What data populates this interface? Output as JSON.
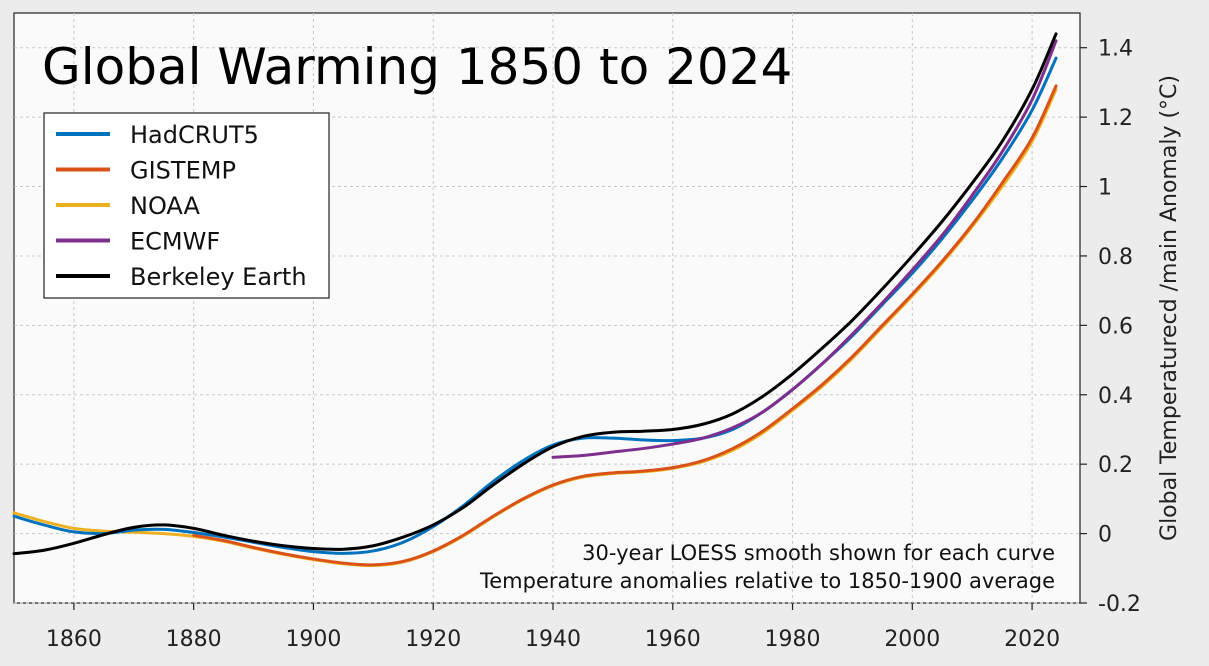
{
  "chart_data": {
    "type": "line",
    "title": "Global Warming 1850 to 2024",
    "ylabel": "Global Temperaturecd /main Anomaly (°C)",
    "xlabel": "",
    "xlim": [
      1850,
      2028
    ],
    "ylim": [
      -0.2,
      1.5
    ],
    "xticks": [
      1860,
      1880,
      1900,
      1920,
      1940,
      1960,
      1980,
      2000,
      2020
    ],
    "yticks": [
      -0.2,
      0,
      0.2,
      0.4,
      0.6,
      0.8,
      1,
      1.2,
      1.4
    ],
    "ytick_labels": [
      "-0.2",
      "0",
      "0.2",
      "0.4",
      "0.6",
      "0.8",
      "1",
      "1.2",
      "1.4"
    ],
    "y_axis_side": "right",
    "grid": true,
    "legend_position": "top-left",
    "annotations": [
      "30-year LOESS smooth shown for each curve",
      "Temperature anomalies relative to 1850-1900 average"
    ],
    "series": [
      {
        "name": "HadCRUT5",
        "color": "#0072bd",
        "points": [
          [
            1850,
            0.05
          ],
          [
            1855,
            0.025
          ],
          [
            1860,
            0.005
          ],
          [
            1865,
            0.0
          ],
          [
            1870,
            0.01
          ],
          [
            1875,
            0.012
          ],
          [
            1880,
            0.003
          ],
          [
            1885,
            -0.01
          ],
          [
            1890,
            -0.025
          ],
          [
            1895,
            -0.04
          ],
          [
            1900,
            -0.052
          ],
          [
            1905,
            -0.057
          ],
          [
            1910,
            -0.05
          ],
          [
            1915,
            -0.025
          ],
          [
            1920,
            0.02
          ],
          [
            1925,
            0.08
          ],
          [
            1930,
            0.15
          ],
          [
            1935,
            0.21
          ],
          [
            1940,
            0.255
          ],
          [
            1945,
            0.275
          ],
          [
            1950,
            0.275
          ],
          [
            1955,
            0.27
          ],
          [
            1960,
            0.268
          ],
          [
            1965,
            0.275
          ],
          [
            1970,
            0.3
          ],
          [
            1975,
            0.35
          ],
          [
            1980,
            0.415
          ],
          [
            1985,
            0.49
          ],
          [
            1990,
            0.57
          ],
          [
            1995,
            0.66
          ],
          [
            2000,
            0.75
          ],
          [
            2005,
            0.85
          ],
          [
            2010,
            0.96
          ],
          [
            2015,
            1.08
          ],
          [
            2020,
            1.22
          ],
          [
            2024,
            1.37
          ]
        ]
      },
      {
        "name": "GISTEMP",
        "color": "#d95319",
        "points": [
          [
            1880,
            -0.005
          ],
          [
            1885,
            -0.02
          ],
          [
            1890,
            -0.04
          ],
          [
            1895,
            -0.058
          ],
          [
            1900,
            -0.073
          ],
          [
            1905,
            -0.085
          ],
          [
            1910,
            -0.09
          ],
          [
            1915,
            -0.08
          ],
          [
            1920,
            -0.05
          ],
          [
            1925,
            -0.005
          ],
          [
            1930,
            0.05
          ],
          [
            1935,
            0.1
          ],
          [
            1940,
            0.14
          ],
          [
            1945,
            0.165
          ],
          [
            1950,
            0.175
          ],
          [
            1955,
            0.18
          ],
          [
            1960,
            0.19
          ],
          [
            1965,
            0.21
          ],
          [
            1970,
            0.245
          ],
          [
            1975,
            0.295
          ],
          [
            1980,
            0.36
          ],
          [
            1985,
            0.43
          ],
          [
            1990,
            0.51
          ],
          [
            1995,
            0.6
          ],
          [
            2000,
            0.69
          ],
          [
            2005,
            0.785
          ],
          [
            2010,
            0.89
          ],
          [
            2015,
            1.01
          ],
          [
            2020,
            1.14
          ],
          [
            2024,
            1.29
          ]
        ]
      },
      {
        "name": "NOAA",
        "color": "#edb120",
        "points": [
          [
            1850,
            0.06
          ],
          [
            1855,
            0.035
          ],
          [
            1860,
            0.015
          ],
          [
            1865,
            0.007
          ],
          [
            1870,
            0.004
          ],
          [
            1875,
            0.0
          ],
          [
            1880,
            -0.008
          ],
          [
            1885,
            -0.022
          ],
          [
            1890,
            -0.042
          ],
          [
            1895,
            -0.06
          ],
          [
            1900,
            -0.075
          ],
          [
            1905,
            -0.087
          ],
          [
            1910,
            -0.092
          ],
          [
            1915,
            -0.082
          ],
          [
            1920,
            -0.052
          ],
          [
            1925,
            -0.007
          ],
          [
            1930,
            0.048
          ],
          [
            1935,
            0.098
          ],
          [
            1940,
            0.138
          ],
          [
            1945,
            0.163
          ],
          [
            1950,
            0.173
          ],
          [
            1955,
            0.178
          ],
          [
            1960,
            0.188
          ],
          [
            1965,
            0.207
          ],
          [
            1970,
            0.24
          ],
          [
            1975,
            0.29
          ],
          [
            1980,
            0.355
          ],
          [
            1985,
            0.425
          ],
          [
            1990,
            0.505
          ],
          [
            1995,
            0.595
          ],
          [
            2000,
            0.685
          ],
          [
            2005,
            0.78
          ],
          [
            2010,
            0.885
          ],
          [
            2015,
            1.0
          ],
          [
            2020,
            1.13
          ],
          [
            2024,
            1.28
          ]
        ]
      },
      {
        "name": "ECMWF",
        "color": "#7e2f8e",
        "points": [
          [
            1940,
            0.22
          ],
          [
            1945,
            0.225
          ],
          [
            1950,
            0.235
          ],
          [
            1955,
            0.245
          ],
          [
            1960,
            0.258
          ],
          [
            1965,
            0.275
          ],
          [
            1970,
            0.305
          ],
          [
            1975,
            0.35
          ],
          [
            1980,
            0.415
          ],
          [
            1985,
            0.49
          ],
          [
            1990,
            0.575
          ],
          [
            1995,
            0.665
          ],
          [
            2000,
            0.76
          ],
          [
            2005,
            0.86
          ],
          [
            2010,
            0.975
          ],
          [
            2015,
            1.1
          ],
          [
            2020,
            1.25
          ],
          [
            2024,
            1.42
          ]
        ]
      },
      {
        "name": "Berkeley Earth",
        "color": "#000000",
        "points": [
          [
            1850,
            -0.058
          ],
          [
            1855,
            -0.048
          ],
          [
            1860,
            -0.028
          ],
          [
            1865,
            -0.003
          ],
          [
            1870,
            0.018
          ],
          [
            1875,
            0.025
          ],
          [
            1880,
            0.015
          ],
          [
            1885,
            -0.005
          ],
          [
            1890,
            -0.022
          ],
          [
            1895,
            -0.035
          ],
          [
            1900,
            -0.043
          ],
          [
            1905,
            -0.045
          ],
          [
            1910,
            -0.035
          ],
          [
            1915,
            -0.01
          ],
          [
            1920,
            0.025
          ],
          [
            1925,
            0.075
          ],
          [
            1930,
            0.14
          ],
          [
            1935,
            0.2
          ],
          [
            1940,
            0.25
          ],
          [
            1945,
            0.28
          ],
          [
            1950,
            0.292
          ],
          [
            1955,
            0.295
          ],
          [
            1960,
            0.3
          ],
          [
            1965,
            0.315
          ],
          [
            1970,
            0.345
          ],
          [
            1975,
            0.395
          ],
          [
            1980,
            0.46
          ],
          [
            1985,
            0.535
          ],
          [
            1990,
            0.615
          ],
          [
            1995,
            0.705
          ],
          [
            2000,
            0.8
          ],
          [
            2005,
            0.9
          ],
          [
            2010,
            1.01
          ],
          [
            2015,
            1.13
          ],
          [
            2020,
            1.28
          ],
          [
            2024,
            1.44
          ]
        ]
      }
    ]
  }
}
